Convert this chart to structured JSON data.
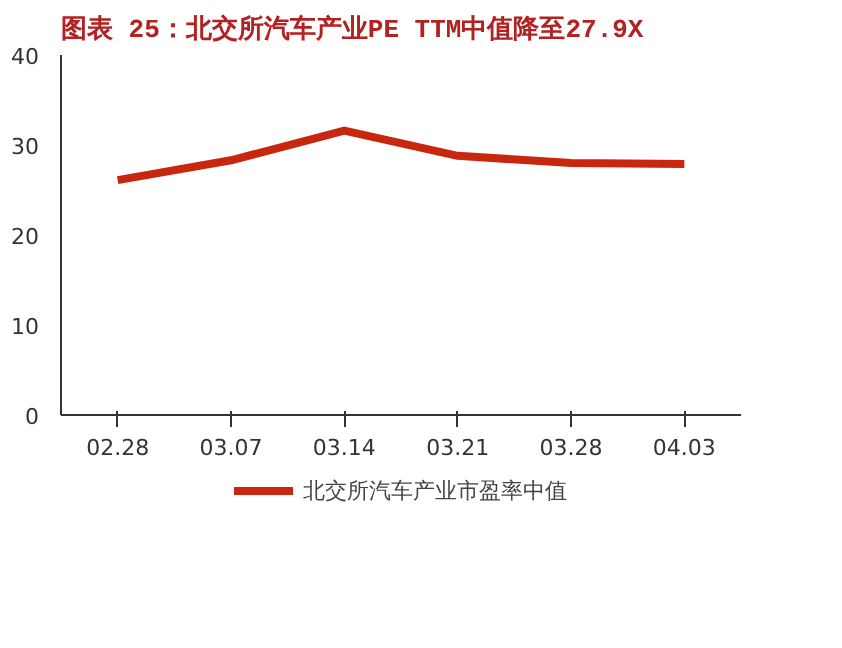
{
  "chart_data": {
    "type": "line",
    "title": "图表 25：北交所汽车产业PE TTM中值降至27.9X",
    "categories": [
      "02.28",
      "03.07",
      "03.14",
      "03.21",
      "03.28",
      "04.03"
    ],
    "series": [
      {
        "name": "北交所汽车产业市盈率中值",
        "color": "#c8260f",
        "values": [
          26.1,
          28.3,
          31.6,
          28.8,
          28.0,
          27.9
        ]
      }
    ],
    "ylim": [
      0,
      40
    ],
    "yticks": [
      0,
      10,
      20,
      30,
      40
    ],
    "grid": false,
    "legend": "bottom",
    "marker": "none",
    "line_style": "solid"
  }
}
